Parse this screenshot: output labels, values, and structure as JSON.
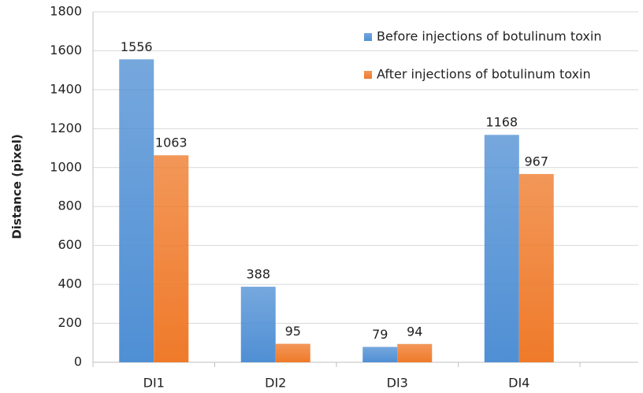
{
  "chart_data": {
    "type": "bar",
    "y_label": "Distance (pixel)",
    "categories": [
      "DI1",
      "DI2",
      "DI3",
      "DI4"
    ],
    "series": [
      {
        "name": "Before injections of botulinum toxin",
        "color": "#4f8fd4",
        "values": [
          1556,
          388,
          79,
          1168
        ]
      },
      {
        "name": "After injections of botulinum toxin",
        "color": "#ef7a2a",
        "values": [
          1063,
          95,
          94,
          967
        ]
      }
    ],
    "ylim": [
      0,
      1800
    ],
    "yticks": [
      0,
      200,
      400,
      600,
      800,
      1000,
      1200,
      1400,
      1600,
      1800
    ],
    "grid": true,
    "legend": "upper right"
  }
}
